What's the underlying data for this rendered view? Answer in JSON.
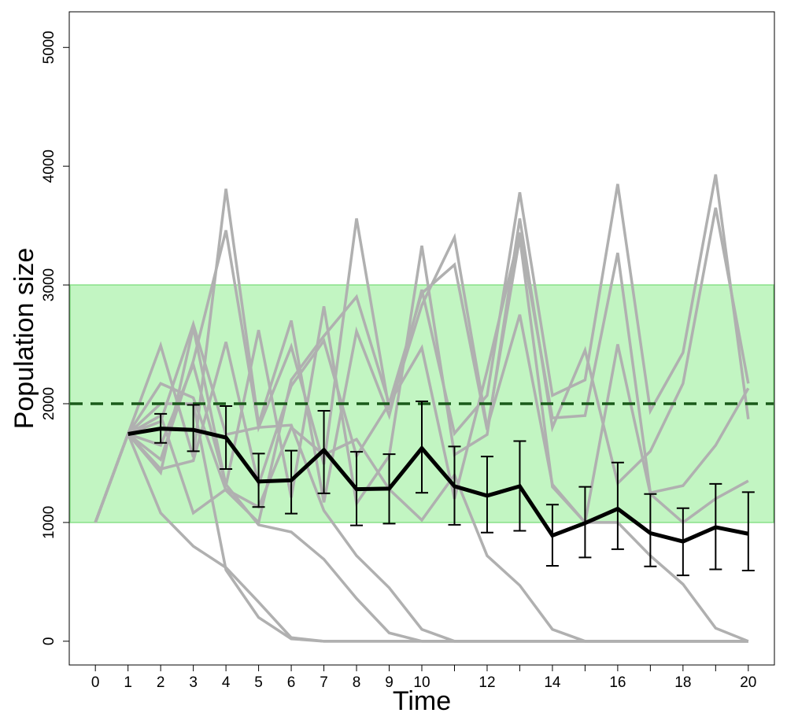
{
  "chart_data": {
    "type": "line",
    "title": "",
    "xlabel": "Time",
    "ylabel": "Population size",
    "xlim": [
      -0.8,
      20.8
    ],
    "ylim": [
      -200,
      5300
    ],
    "x_ticks": [
      0,
      1,
      2,
      3,
      4,
      5,
      6,
      7,
      8,
      9,
      10,
      11,
      12,
      13,
      14,
      15,
      16,
      17,
      18,
      19,
      20
    ],
    "x_tick_labels": [
      "0",
      "1",
      "2",
      "3",
      "4",
      "5",
      "6",
      "7",
      "8",
      "9",
      "10",
      "",
      "12",
      "",
      "14",
      "",
      "16",
      "",
      "18",
      "",
      "20"
    ],
    "y_ticks": [
      0,
      1000,
      2000,
      3000,
      4000,
      5000
    ],
    "y_tick_labels": [
      "0",
      "1000",
      "2000",
      "3000",
      "4000",
      "5000"
    ],
    "grid": false,
    "legend": "none",
    "band": {
      "y_min": 1000,
      "y_max": 3000,
      "fill": "#c2f5c2",
      "edge": "#88e088"
    },
    "reference_line": {
      "y": 2000,
      "color": "#1a5a1a",
      "style": "dashed"
    },
    "x": [
      0,
      1,
      2,
      3,
      4,
      5,
      6,
      7,
      8,
      9,
      10,
      11,
      12,
      13,
      14,
      15,
      16,
      17,
      18,
      19,
      20
    ],
    "simulations_color": "#b0b0b0",
    "simulations": [
      {
        "values": [
          1000,
          1745,
          2490,
          1550,
          3810,
          1830,
          2700,
          1170,
          2610,
          1900,
          2960,
          1750,
          2070,
          3780,
          2070,
          2200,
          3850,
          1940,
          2430,
          3930,
          1870
        ]
      },
      {
        "values": [
          1000,
          1745,
          1420,
          2640,
          1310,
          2620,
          1210,
          2820,
          1160,
          1560,
          3330,
          1570,
          1740,
          3560,
          1800,
          2450,
          1330,
          1600,
          2170,
          3650,
          2170
        ]
      },
      {
        "values": [
          1000,
          1745,
          2170,
          2050,
          1270,
          1000,
          2200,
          2570,
          2900,
          2000,
          2470,
          1200,
          2280,
          3440,
          1880,
          1900,
          3270,
          1250,
          1310,
          1650,
          2130
        ]
      },
      {
        "values": [
          1000,
          1745,
          1530,
          2360,
          3460,
          1800,
          2480,
          1490,
          3560,
          1950,
          2830,
          3400,
          1800,
          2750,
          1320,
          1000,
          2500,
          1240,
          1000,
          1200,
          1350
        ]
      },
      {
        "values": [
          1000,
          1745,
          1450,
          1520,
          2520,
          1320,
          2150,
          2530,
          1560,
          2000,
          2930,
          3170,
          1780,
          3400,
          1300,
          1000,
          1000,
          720,
          480,
          110,
          0
        ]
      },
      {
        "values": [
          1000,
          1745,
          1850,
          2670,
          1740,
          1800,
          1820,
          1100,
          720,
          450,
          100,
          0,
          0,
          0,
          0,
          0,
          0,
          0,
          0,
          0,
          0
        ]
      },
      {
        "values": [
          1000,
          1745,
          1650,
          2330,
          1320,
          980,
          920,
          690,
          360,
          70,
          0,
          0,
          0,
          0,
          0,
          0,
          0,
          0,
          0,
          0,
          0
        ]
      },
      {
        "values": [
          1000,
          1745,
          2000,
          2000,
          600,
          200,
          20,
          0,
          0,
          0,
          0,
          0,
          0,
          0,
          0,
          0,
          0,
          0,
          0,
          0,
          0
        ]
      },
      {
        "values": [
          1000,
          1745,
          1080,
          800,
          620,
          330,
          30,
          0,
          0,
          0,
          0,
          0,
          0,
          0,
          0,
          0,
          0,
          0,
          0,
          0,
          0
        ]
      },
      {
        "values": [
          1000,
          1745,
          1900,
          1080,
          1280,
          1130,
          1800,
          1570,
          1700,
          1280,
          1020,
          1400,
          720,
          470,
          100,
          0,
          0,
          0,
          0,
          0,
          0
        ]
      }
    ],
    "mean_series": {
      "color": "#000000",
      "x": [
        1,
        2,
        3,
        4,
        5,
        6,
        7,
        8,
        9,
        10,
        11,
        12,
        13,
        14,
        15,
        16,
        17,
        18,
        19,
        20
      ],
      "values": [
        1745,
        1790,
        1780,
        1715,
        1345,
        1355,
        1610,
        1280,
        1285,
        1625,
        1305,
        1225,
        1305,
        890,
        995,
        1115,
        910,
        840,
        960,
        905
      ],
      "error_low": [
        null,
        1670,
        1600,
        1450,
        1130,
        1075,
        1245,
        975,
        990,
        1250,
        980,
        915,
        930,
        635,
        705,
        775,
        630,
        555,
        605,
        595
      ],
      "error_high": [
        null,
        1915,
        1990,
        1980,
        1580,
        1605,
        1940,
        1595,
        1575,
        2020,
        1640,
        1555,
        1685,
        1150,
        1300,
        1505,
        1240,
        1120,
        1325,
        1255
      ]
    }
  }
}
